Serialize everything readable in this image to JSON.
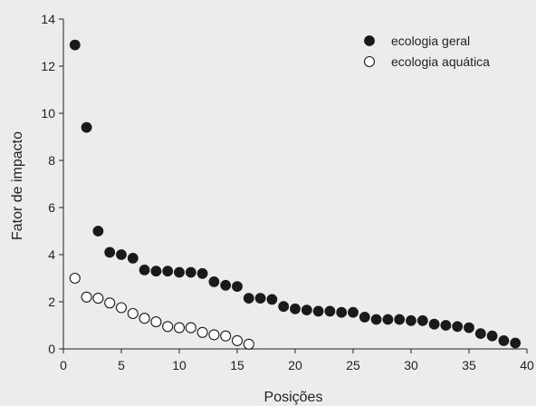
{
  "chart_data": {
    "type": "scatter",
    "xlabel": "Posições",
    "ylabel": "Fator de impacto",
    "xlim": [
      0,
      40
    ],
    "ylim": [
      0,
      14
    ],
    "xticks": [
      0,
      5,
      10,
      15,
      20,
      25,
      30,
      35,
      40
    ],
    "yticks": [
      0,
      2,
      4,
      6,
      8,
      10,
      12,
      14
    ],
    "grid": false,
    "legend_position": "top-right",
    "series": [
      {
        "name": "ecologia geral",
        "marker": "filled-circle",
        "color": "#1a1a1a",
        "x": [
          1,
          2,
          3,
          4,
          5,
          6,
          7,
          8,
          9,
          10,
          11,
          12,
          13,
          14,
          15,
          16,
          17,
          18,
          19,
          20,
          21,
          22,
          23,
          24,
          25,
          26,
          27,
          28,
          29,
          30,
          31,
          32,
          33,
          34,
          35,
          36,
          37,
          38,
          39
        ],
        "y": [
          12.9,
          9.4,
          5.0,
          4.1,
          4.0,
          3.85,
          3.35,
          3.3,
          3.3,
          3.25,
          3.25,
          3.2,
          2.85,
          2.7,
          2.65,
          2.15,
          2.15,
          2.1,
          1.8,
          1.7,
          1.65,
          1.6,
          1.6,
          1.55,
          1.55,
          1.35,
          1.25,
          1.25,
          1.25,
          1.2,
          1.2,
          1.05,
          1.0,
          0.95,
          0.9,
          0.65,
          0.55,
          0.35,
          0.25
        ]
      },
      {
        "name": "ecologia aquática",
        "marker": "open-circle",
        "color": "#1a1a1a",
        "x": [
          1,
          2,
          3,
          4,
          5,
          6,
          7,
          8,
          9,
          10,
          11,
          12,
          13,
          14,
          15,
          16
        ],
        "y": [
          3.0,
          2.2,
          2.15,
          1.95,
          1.75,
          1.5,
          1.3,
          1.15,
          0.95,
          0.9,
          0.9,
          0.7,
          0.6,
          0.55,
          0.35,
          0.2
        ]
      }
    ]
  }
}
